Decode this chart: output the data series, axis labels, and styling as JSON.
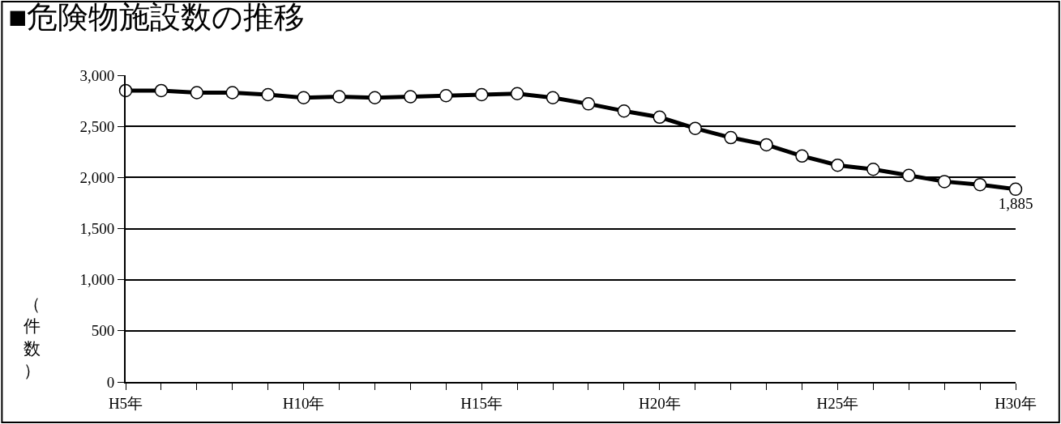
{
  "chart_data": {
    "type": "line",
    "title": "■危険物施設数の推移",
    "ylabel": "（件数）",
    "categories": [
      "H5年",
      null,
      null,
      null,
      null,
      "H10年",
      null,
      null,
      null,
      null,
      "H15年",
      null,
      null,
      null,
      null,
      "H20年",
      null,
      null,
      null,
      null,
      "H25年",
      null,
      null,
      null,
      null,
      "H30年"
    ],
    "series": [
      {
        "color": "#000000",
        "values": [
          2850,
          2850,
          2830,
          2830,
          2810,
          2780,
          2790,
          2780,
          2790,
          2800,
          2810,
          2820,
          2780,
          2720,
          2650,
          2590,
          2480,
          2390,
          2320,
          2210,
          2120,
          2080,
          2020,
          1960,
          1930,
          1885
        ],
        "value_labels": [
          null,
          null,
          null,
          null,
          null,
          null,
          null,
          null,
          null,
          null,
          null,
          null,
          null,
          null,
          null,
          null,
          null,
          null,
          null,
          null,
          null,
          null,
          null,
          null,
          null,
          "1,885"
        ]
      }
    ],
    "ylim": [
      0,
      3000
    ],
    "yticks": [
      {
        "value": 0,
        "label": "0"
      },
      {
        "value": 500,
        "label": "500"
      },
      {
        "value": 1000,
        "label": "1,000"
      },
      {
        "value": 1500,
        "label": "1,500"
      },
      {
        "value": 2000,
        "label": "2,000"
      },
      {
        "value": 2500,
        "label": "2,500"
      },
      {
        "value": 3000,
        "label": "3,000"
      }
    ],
    "grid": "y",
    "marker": "circle",
    "line_style": "solid"
  }
}
